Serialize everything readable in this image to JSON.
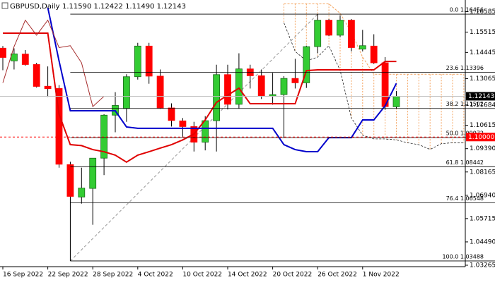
{
  "chart_data": {
    "type": "candlestick",
    "title": "GBPUSD,Daily",
    "ohlc_text": "1.11590 1.12422 1.11490 1.12143",
    "categories": [
      "16 Sep 2022",
      null,
      null,
      null,
      "22 Sep 2022",
      null,
      null,
      null,
      "28 Sep 2022",
      null,
      null,
      null,
      "4 Oct 2022",
      null,
      null,
      null,
      "10 Oct 2022",
      null,
      null,
      null,
      "14 Oct 2022",
      null,
      null,
      null,
      "20 Oct 2022",
      null,
      null,
      null,
      "26 Oct 2022",
      null,
      null,
      null,
      "1 Nov 2022",
      null,
      null,
      null,
      null,
      null,
      null,
      null,
      null,
      null
    ],
    "open": [
      1.1467,
      1.14,
      1.1436,
      1.1381,
      1.1267,
      1.1255,
      1.0855,
      1.0685,
      1.073,
      1.0889,
      1.1115,
      1.115,
      1.1317,
      1.1478,
      1.132,
      1.1153,
      1.1085,
      1.1055,
      1.0973,
      1.1086,
      1.1328,
      1.1172,
      1.1358,
      1.1322,
      1.1215,
      1.1223,
      1.1308,
      1.1285,
      1.1475,
      1.1614,
      1.1535,
      1.1614,
      1.1462,
      1.1478,
      1.139,
      1.1159,
      null,
      null,
      null,
      null,
      null,
      null
    ],
    "high": [
      1.1478,
      1.1466,
      1.1457,
      1.139,
      1.1371,
      1.1273,
      1.087,
      1.0839,
      1.0886,
      1.112,
      1.1236,
      1.133,
      1.1495,
      1.1495,
      1.1355,
      1.1177,
      1.11,
      1.108,
      1.111,
      1.138,
      1.138,
      1.144,
      1.138,
      1.1355,
      1.1337,
      1.132,
      1.1411,
      1.148,
      1.1646,
      1.162,
      1.164,
      1.162,
      1.1563,
      1.154,
      1.142,
      1.12422,
      null,
      null,
      null,
      null,
      null,
      null
    ],
    "low": [
      1.1351,
      1.1355,
      1.1375,
      1.126,
      1.1211,
      1.0839,
      1.0349,
      1.065,
      1.0539,
      1.08,
      1.1025,
      1.108,
      1.1302,
      1.128,
      1.1148,
      1.1055,
      1.0999,
      1.0924,
      1.093,
      1.0924,
      1.1145,
      1.115,
      1.1255,
      1.12,
      1.117,
      1.0996,
      1.1255,
      1.1258,
      1.144,
      1.153,
      1.1525,
      1.145,
      1.145,
      1.1384,
      1.1143,
      1.1149,
      null,
      null,
      null,
      null,
      null,
      null
    ],
    "close": [
      1.1418,
      1.1437,
      1.1381,
      1.1266,
      1.1254,
      1.0857,
      1.0688,
      1.0732,
      1.0889,
      1.1115,
      1.1166,
      1.1317,
      1.1478,
      1.132,
      1.1153,
      1.1087,
      1.1055,
      1.0973,
      1.1086,
      1.1328,
      1.1172,
      1.1358,
      1.1322,
      1.1215,
      1.1223,
      1.1308,
      1.1285,
      1.1475,
      1.1614,
      1.1535,
      1.1614,
      1.147,
      1.148,
      1.139,
      1.116,
      1.12143,
      null,
      null,
      null,
      null,
      null,
      null
    ],
    "up_color": "#33cc33",
    "down_color": "#ff0000",
    "series": [
      {
        "color": "#e00000",
        "width": 2,
        "values": [
          1.1546,
          1.1546,
          1.1546,
          1.1546,
          1.1546,
          1.112,
          1.096,
          1.0955,
          1.0934,
          1.0923,
          1.0905,
          1.0868,
          1.0905,
          1.0923,
          1.0942,
          1.096,
          1.0985,
          1.1016,
          1.109,
          1.1182,
          1.122,
          1.1257,
          1.1175,
          1.1175,
          1.1175,
          1.1175,
          1.1175,
          1.1349,
          1.1353,
          1.1353,
          1.1353,
          1.1353,
          1.1353,
          1.1353,
          1.1397,
          1.1397,
          null,
          null,
          null,
          null,
          null,
          null
        ]
      },
      {
        "color": "#0000cc",
        "width": 2,
        "values": [
          null,
          null,
          null,
          null,
          1.168,
          1.14,
          1.1138,
          1.1138,
          1.1138,
          1.1138,
          1.1138,
          1.1053,
          1.1046,
          1.1046,
          1.1046,
          1.1046,
          1.1046,
          1.1046,
          1.1046,
          1.1046,
          1.1046,
          1.1046,
          1.1046,
          1.1046,
          1.1046,
          1.096,
          1.0934,
          1.0923,
          1.0923,
          1.0997,
          1.0997,
          1.0997,
          1.109,
          1.109,
          1.1164,
          1.1282,
          null,
          null,
          null,
          null,
          null,
          null
        ]
      },
      {
        "color": "#a52a2a",
        "width": 1,
        "values": [
          1.1285,
          1.1475,
          1.1614,
          1.1535,
          1.1614,
          1.147,
          1.148,
          1.139,
          1.116,
          1.12143,
          null,
          null,
          null,
          null,
          null,
          null,
          null,
          null,
          null,
          null,
          null,
          null,
          null,
          null,
          null,
          null,
          null,
          null,
          null,
          null,
          null,
          null,
          null,
          null,
          null,
          null,
          null,
          null,
          null,
          null,
          null,
          null
        ]
      }
    ],
    "cloud": {
      "color": "#f4a460",
      "edge_color": "#000000",
      "span_a": [
        null,
        null,
        null,
        null,
        null,
        null,
        null,
        null,
        null,
        null,
        null,
        null,
        null,
        null,
        null,
        null,
        null,
        null,
        null,
        null,
        null,
        null,
        null,
        null,
        null,
        1.17,
        1.17,
        1.17,
        1.17,
        1.17,
        1.165,
        1.155,
        1.142,
        1.133,
        1.133,
        1.133,
        1.133,
        1.133,
        1.133,
        1.133,
        1.133,
        1.133
      ],
      "span_b": [
        null,
        null,
        null,
        null,
        null,
        null,
        null,
        null,
        null,
        null,
        null,
        null,
        null,
        null,
        null,
        null,
        null,
        null,
        null,
        null,
        null,
        null,
        null,
        null,
        null,
        1.16,
        1.145,
        1.14,
        1.142,
        1.148,
        1.135,
        1.11,
        1.101,
        1.099,
        1.099,
        1.0985,
        1.097,
        1.096,
        1.0935,
        1.0965,
        1.097,
        1.097
      ]
    },
    "fib": {
      "anchor_index": 6,
      "peak_index": 28,
      "color": "#000000",
      "levels": [
        {
          "value": 1.16456,
          "label": "0.0 1.16456"
        },
        {
          "value": 1.13396,
          "label": "23.6 1.13396"
        },
        {
          "value": 1.11502,
          "label": "38.2 1.11502"
        },
        {
          "value": 1.09972,
          "label": "50.0 1.09972"
        },
        {
          "value": 1.08442,
          "label": "61.8 1.08442"
        },
        {
          "value": 1.06548,
          "label": "76.4 1.06548"
        },
        {
          "value": 1.03488,
          "label": "100.0 1.03488"
        }
      ]
    },
    "hline": {
      "value": 1.1,
      "label": "1.10000",
      "color": "#ff0000"
    },
    "ylim": [
      1.0319,
      1.172
    ],
    "yticks": [
      1.16585,
      1.15515,
      1.14445,
      1.13065,
      1.11684,
      1.10615,
      {
        "value": 1.0939,
        "label": "1.09390"
      },
      1.08165,
      {
        "value": 1.0694,
        "label": "1.06940"
      },
      1.05715,
      {
        "value": 1.0449,
        "label": "1.04490"
      },
      1.03265
    ]
  }
}
